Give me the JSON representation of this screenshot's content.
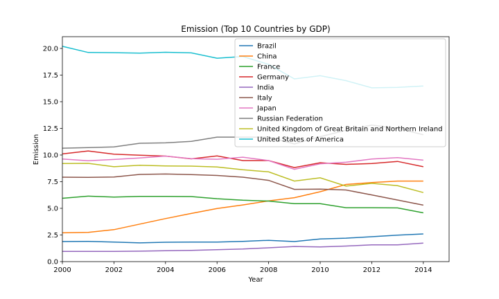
{
  "chart_data": {
    "type": "line",
    "title": "Emission (Top 10 Countries by GDP)",
    "xlabel": "Year",
    "ylabel": "Emission",
    "xlim": [
      2000,
      2015
    ],
    "ylim": [
      0.0,
      21.1
    ],
    "xticks": [
      2000,
      2002,
      2004,
      2006,
      2008,
      2010,
      2012,
      2014
    ],
    "yticks": [
      0.0,
      2.5,
      5.0,
      7.5,
      10.0,
      12.5,
      15.0,
      17.5,
      20.0
    ],
    "xtick_labels": [
      "2000",
      "2002",
      "2004",
      "2006",
      "2008",
      "2010",
      "2012",
      "2014"
    ],
    "ytick_labels": [
      "0.0",
      "2.5",
      "5.0",
      "7.5",
      "10.0",
      "12.5",
      "15.0",
      "17.5",
      "20.0"
    ],
    "grid": false,
    "legend_position": "top-right",
    "x": [
      2000,
      2001,
      2002,
      2003,
      2004,
      2005,
      2006,
      2007,
      2008,
      2009,
      2010,
      2011,
      2012,
      2013,
      2014
    ],
    "series": [
      {
        "name": "Brazil",
        "color": "#1f77b4",
        "values": [
          1.88,
          1.9,
          1.84,
          1.76,
          1.82,
          1.84,
          1.84,
          1.9,
          2.0,
          1.88,
          2.12,
          2.2,
          2.34,
          2.48,
          2.6
        ]
      },
      {
        "name": "China",
        "color": "#ff7f0e",
        "values": [
          2.7,
          2.74,
          3.0,
          3.52,
          4.04,
          4.52,
          4.98,
          5.32,
          5.7,
          6.0,
          6.56,
          7.24,
          7.42,
          7.56,
          7.56
        ]
      },
      {
        "name": "France",
        "color": "#2ca02c",
        "values": [
          5.94,
          6.14,
          6.06,
          6.12,
          6.12,
          6.1,
          5.9,
          5.76,
          5.68,
          5.44,
          5.44,
          5.06,
          5.06,
          5.04,
          4.58
        ]
      },
      {
        "name": "Germany",
        "color": "#d62728",
        "values": [
          10.1,
          10.38,
          10.08,
          9.98,
          9.9,
          9.64,
          9.92,
          9.48,
          9.48,
          8.82,
          9.28,
          9.12,
          9.2,
          9.4,
          8.9
        ]
      },
      {
        "name": "India",
        "color": "#9467bd",
        "values": [
          0.96,
          0.96,
          0.96,
          0.98,
          1.02,
          1.06,
          1.12,
          1.18,
          1.3,
          1.42,
          1.38,
          1.46,
          1.58,
          1.58,
          1.74
        ]
      },
      {
        "name": "Italy",
        "color": "#8c564b",
        "values": [
          7.92,
          7.9,
          7.94,
          8.18,
          8.22,
          8.16,
          8.08,
          7.92,
          7.62,
          6.78,
          6.8,
          6.72,
          6.26,
          5.78,
          5.3
        ]
      },
      {
        "name": "Japan",
        "color": "#e377c2",
        "values": [
          9.62,
          9.46,
          9.58,
          9.72,
          9.9,
          9.66,
          9.6,
          9.8,
          9.48,
          8.66,
          9.18,
          9.32,
          9.62,
          9.76,
          9.52
        ]
      },
      {
        "name": "Russian Federation",
        "color": "#7f7f7f",
        "values": [
          10.64,
          10.7,
          10.76,
          11.1,
          11.14,
          11.28,
          11.68,
          11.68,
          11.68,
          11.04,
          11.72,
          12.32,
          12.8,
          12.5,
          11.9
        ]
      },
      {
        "name": "United Kingdom of Great Britain and Northern Ireland",
        "color": "#bcbd22",
        "values": [
          9.2,
          9.22,
          8.9,
          9.04,
          8.98,
          8.96,
          8.88,
          8.62,
          8.42,
          7.56,
          7.86,
          7.08,
          7.34,
          7.12,
          6.48
        ]
      },
      {
        "name": "United States of America",
        "color": "#17becf",
        "values": [
          20.2,
          19.62,
          19.6,
          19.56,
          19.64,
          19.58,
          19.08,
          19.24,
          18.5,
          17.14,
          17.44,
          16.98,
          16.3,
          16.34,
          16.48
        ]
      }
    ]
  }
}
